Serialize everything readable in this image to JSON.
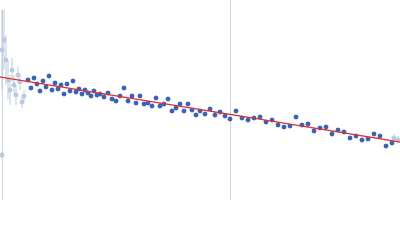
{
  "chart_data": {
    "type": "scatter",
    "xlim": [
      0,
      400
    ],
    "ylim": [
      0,
      200
    ],
    "series": [
      {
        "color": "#b9c9e2",
        "x": [
          2,
          4,
          6,
          8,
          10,
          12,
          14,
          16,
          18,
          20,
          22,
          24,
          2,
          394,
          398
        ],
        "values": [
          150,
          160,
          140,
          120,
          110,
          130,
          115,
          105,
          125,
          118,
          98,
          104,
          45,
          62,
          60
        ],
        "errors": [
          40,
          30,
          25,
          20,
          15,
          12,
          10,
          10,
          8,
          8,
          6,
          6,
          3,
          4,
          4
        ]
      },
      {
        "color": "#3a62b8",
        "x": [
          28,
          31,
          34,
          37,
          40,
          43,
          46,
          49,
          52,
          55,
          58,
          61,
          64,
          67,
          70,
          73,
          76,
          79,
          82,
          85,
          88,
          91,
          94,
          97,
          100,
          104,
          108,
          112,
          116,
          120,
          124,
          128,
          132,
          136,
          140,
          144,
          148,
          152,
          156,
          160,
          164,
          168,
          172,
          176,
          180,
          184,
          188,
          192,
          196,
          200,
          205,
          210,
          215,
          220,
          225,
          230,
          236,
          242,
          248,
          254,
          260,
          266,
          272,
          278,
          284,
          290,
          296,
          302,
          308,
          314,
          320,
          326,
          332,
          338,
          344,
          350,
          356,
          362,
          368,
          374,
          380,
          386,
          392
        ],
        "values": [
          120,
          112,
          122,
          116,
          109,
          119,
          113,
          124,
          110,
          117,
          111,
          115,
          106,
          116,
          109,
          119,
          108,
          111,
          106,
          110,
          107,
          104,
          109,
          105,
          106,
          103,
          107,
          101,
          99,
          104,
          112,
          99,
          104,
          97,
          104,
          96,
          97,
          94,
          102,
          94,
          96,
          101,
          89,
          92,
          96,
          89,
          96,
          90,
          85,
          89,
          86,
          91,
          85,
          88,
          84,
          81,
          89,
          82,
          80,
          82,
          83,
          78,
          80,
          75,
          73,
          74,
          83,
          75,
          76,
          69,
          72,
          73,
          66,
          70,
          68,
          62,
          64,
          60,
          61,
          66,
          64,
          54,
          57
        ]
      }
    ],
    "fit": {
      "color": "#d9342b",
      "x": [
        0,
        400
      ],
      "values": [
        123,
        58
      ]
    }
  }
}
